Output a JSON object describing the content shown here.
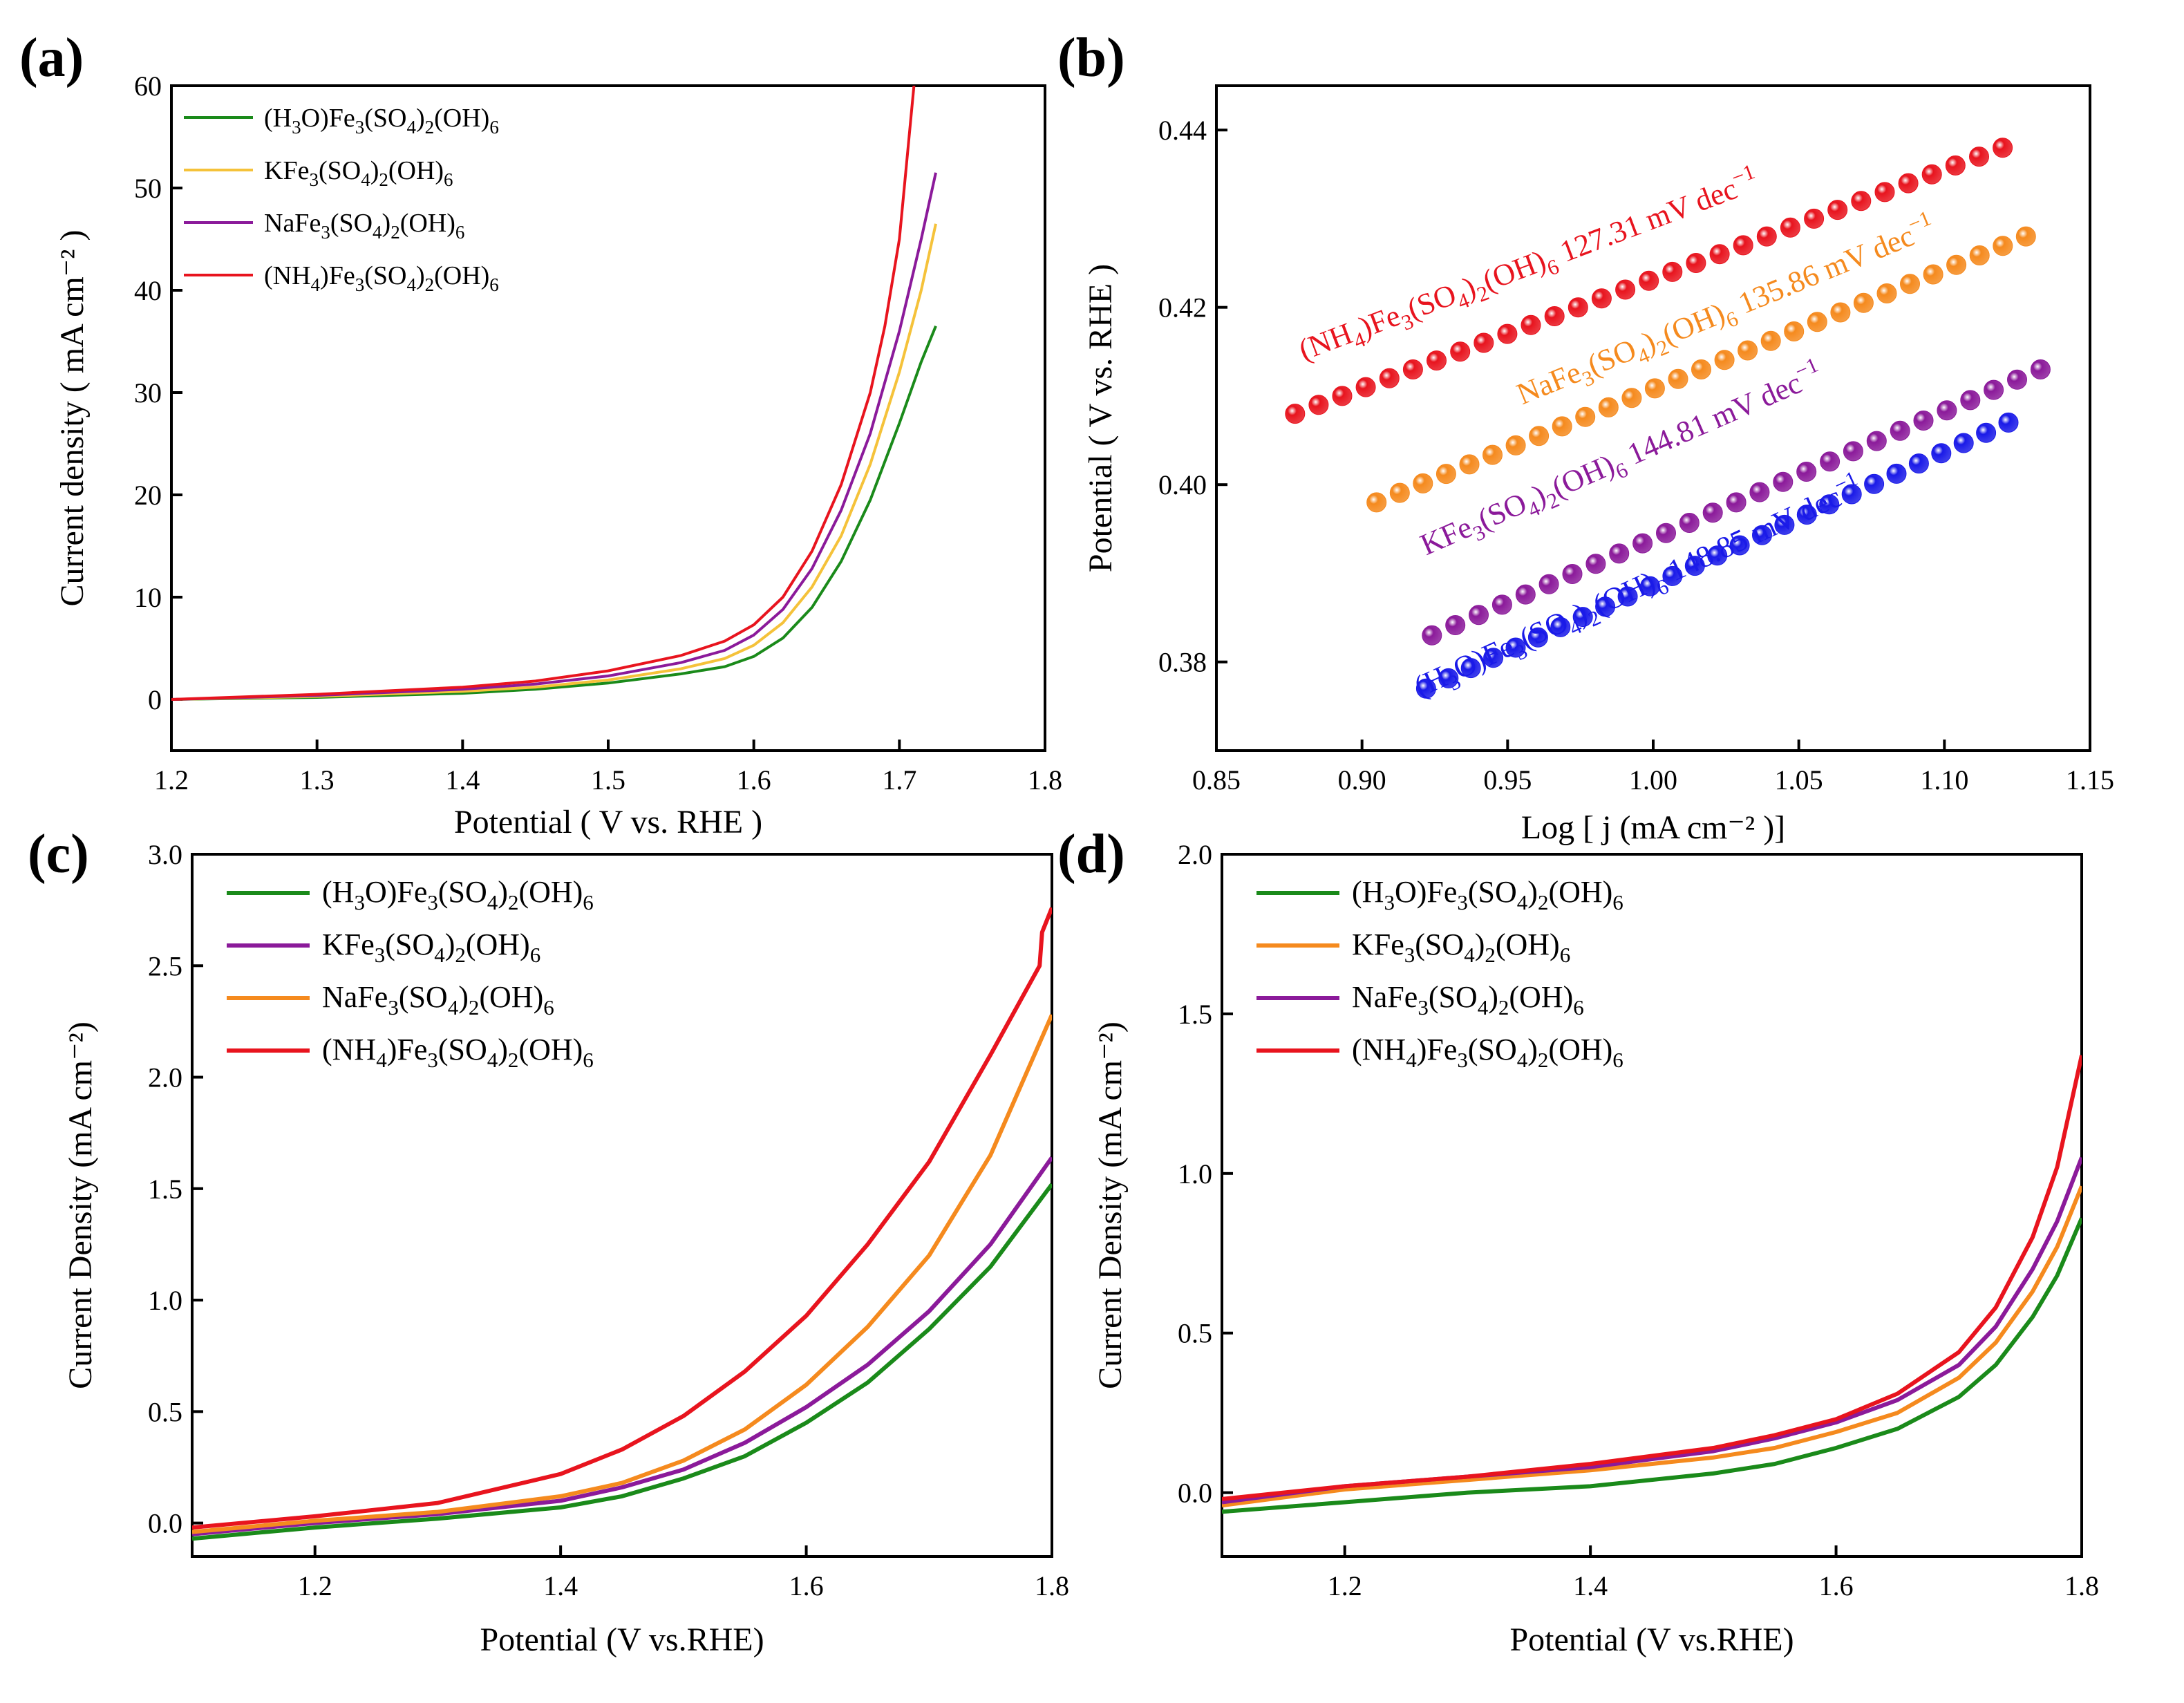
{
  "chart_data": [
    {
      "type": "line",
      "panel_label": "(a)",
      "xlabel": "Potential ( V vs. RHE )",
      "ylabel": "Current density ( mA cm⁻² )",
      "xlim": [
        1.2,
        1.8
      ],
      "ylim": [
        -5,
        60
      ],
      "xticks": [
        "1.2",
        "1.3",
        "1.4",
        "1.5",
        "1.6",
        "1.7",
        "1.8"
      ],
      "yticks": [
        "0",
        "10",
        "20",
        "30",
        "40",
        "50",
        "60"
      ],
      "legend_position": "top-left",
      "series": [
        {
          "name": "(H₃O)Fe₃(SO₄)₂(OH)₆",
          "color": "#1a8a1a",
          "x": [
            1.2,
            1.3,
            1.4,
            1.45,
            1.5,
            1.55,
            1.58,
            1.6,
            1.62,
            1.64,
            1.66,
            1.68,
            1.7,
            1.715,
            1.725
          ],
          "y": [
            0,
            0.2,
            0.6,
            1.0,
            1.6,
            2.5,
            3.2,
            4.2,
            6.0,
            9.0,
            13.5,
            19.5,
            27.0,
            33.0,
            36.5
          ]
        },
        {
          "name": "KFe₃(SO₄)₂(OH)₆",
          "color": "#f5c23a",
          "x": [
            1.2,
            1.3,
            1.4,
            1.45,
            1.5,
            1.55,
            1.58,
            1.6,
            1.62,
            1.64,
            1.66,
            1.68,
            1.7,
            1.715,
            1.725
          ],
          "y": [
            0,
            0.3,
            0.8,
            1.2,
            1.9,
            3.0,
            4.0,
            5.3,
            7.5,
            11.0,
            16.0,
            23.0,
            32.0,
            40.0,
            46.5
          ]
        },
        {
          "name": "NaFe₃(SO₄)₂(OH)₆",
          "color": "#8b1a9a",
          "x": [
            1.2,
            1.3,
            1.4,
            1.45,
            1.5,
            1.55,
            1.58,
            1.6,
            1.62,
            1.64,
            1.66,
            1.68,
            1.7,
            1.715,
            1.725
          ],
          "y": [
            0,
            0.4,
            1.0,
            1.5,
            2.3,
            3.6,
            4.8,
            6.3,
            8.8,
            12.8,
            18.5,
            26.0,
            36.0,
            45.0,
            51.5
          ]
        },
        {
          "name": "(NH₄)Fe₃(SO₄)₂(OH)₆",
          "color": "#e8141e",
          "x": [
            1.2,
            1.3,
            1.4,
            1.45,
            1.5,
            1.55,
            1.58,
            1.6,
            1.62,
            1.64,
            1.66,
            1.68,
            1.69,
            1.7,
            1.71
          ],
          "y": [
            0,
            0.5,
            1.2,
            1.8,
            2.8,
            4.3,
            5.7,
            7.3,
            10.0,
            14.5,
            21.0,
            30.0,
            36.5,
            45.0,
            60.0
          ]
        }
      ]
    },
    {
      "type": "scatter",
      "panel_label": "(b)",
      "xlabel": "Log [ j (mA cm⁻² )]",
      "ylabel": "Potential ( V vs. RHE )",
      "xlim": [
        0.85,
        1.15
      ],
      "ylim": [
        0.37,
        0.445
      ],
      "xticks": [
        "0.85",
        "0.90",
        "0.95",
        "1.00",
        "1.05",
        "1.10",
        "1.15"
      ],
      "yticks": [
        "0.38",
        "0.40",
        "0.42",
        "0.44"
      ],
      "series": [
        {
          "name": "(NH4)",
          "color": "#e8141e",
          "x_start": 0.877,
          "x_end": 1.12,
          "y_start": 0.408,
          "y_end": 0.438,
          "n": 31,
          "label_parts": [
            "(NH",
            "4",
            ")Fe",
            "3",
            "(SO",
            "4",
            ")",
            "2",
            "(OH)",
            "6",
            "  127.31 mV dec",
            "−1"
          ]
        },
        {
          "name": "Na",
          "color": "#f58a1e",
          "x_start": 0.905,
          "x_end": 1.128,
          "y_start": 0.398,
          "y_end": 0.428,
          "n": 29,
          "label_parts": [
            "NaFe",
            "3",
            "(SO",
            "4",
            ")",
            "2",
            "(OH)",
            "6",
            "  135.86 mV dec",
            "−1"
          ]
        },
        {
          "name": "K",
          "color": "#8b1a9a",
          "x_start": 0.924,
          "x_end": 1.133,
          "y_start": 0.383,
          "y_end": 0.413,
          "n": 27,
          "label_parts": [
            "KFe",
            "3",
            "(SO",
            "4",
            ")",
            "2",
            "(OH)",
            "6",
            "  144.81 mV dec",
            "−1"
          ]
        },
        {
          "name": "H3O",
          "color": "#1a1ae8",
          "x_start": 0.922,
          "x_end": 1.122,
          "y_start": 0.377,
          "y_end": 0.407,
          "n": 27,
          "label_parts": [
            "(H",
            "3",
            "O)Fe",
            "3",
            "(SO",
            "4",
            ")",
            "2",
            "(OH)",
            "6",
            "  148.85 mV dec",
            "−1"
          ]
        }
      ]
    },
    {
      "type": "line",
      "panel_label": "(c)",
      "xlabel": "Potential (V vs.RHE)",
      "ylabel": "Current Density (mA cm⁻²)",
      "xlim": [
        1.1,
        1.8
      ],
      "ylim": [
        -0.15,
        3.0
      ],
      "xticks": [
        "1.2",
        "1.4",
        "1.6",
        "1.8"
      ],
      "yticks": [
        "0.0",
        "0.5",
        "1.0",
        "1.5",
        "2.0",
        "2.5",
        "3.0"
      ],
      "legend_position": "top-left",
      "series": [
        {
          "name": "(H₃O)Fe₃(SO₄)₂(OH)₆",
          "color": "#1a8a1a",
          "x": [
            1.1,
            1.2,
            1.3,
            1.4,
            1.45,
            1.5,
            1.55,
            1.6,
            1.65,
            1.7,
            1.75,
            1.8
          ],
          "y": [
            -0.07,
            -0.02,
            0.02,
            0.07,
            0.12,
            0.2,
            0.3,
            0.45,
            0.63,
            0.87,
            1.15,
            1.52
          ]
        },
        {
          "name": "KFe₃(SO₄)₂(OH)₆",
          "color": "#8b1a9a",
          "x": [
            1.1,
            1.2,
            1.3,
            1.4,
            1.45,
            1.5,
            1.55,
            1.6,
            1.65,
            1.7,
            1.75,
            1.8
          ],
          "y": [
            -0.05,
            0.0,
            0.04,
            0.1,
            0.16,
            0.24,
            0.36,
            0.52,
            0.71,
            0.95,
            1.25,
            1.64
          ]
        },
        {
          "name": "NaFe₃(SO₄)₂(OH)₆",
          "color": "#f58a1e",
          "x": [
            1.1,
            1.2,
            1.3,
            1.4,
            1.45,
            1.5,
            1.55,
            1.6,
            1.65,
            1.7,
            1.75,
            1.8
          ],
          "y": [
            -0.04,
            0.01,
            0.05,
            0.12,
            0.18,
            0.28,
            0.42,
            0.62,
            0.88,
            1.2,
            1.65,
            2.28
          ]
        },
        {
          "name": "(NH₄)Fe₃(SO₄)₂(OH)₆",
          "color": "#e8141e",
          "x": [
            1.1,
            1.2,
            1.3,
            1.4,
            1.45,
            1.5,
            1.55,
            1.6,
            1.65,
            1.7,
            1.75,
            1.79,
            1.792,
            1.8
          ],
          "y": [
            -0.02,
            0.03,
            0.09,
            0.22,
            0.33,
            0.48,
            0.68,
            0.93,
            1.25,
            1.62,
            2.1,
            2.5,
            2.65,
            2.76
          ]
        }
      ]
    },
    {
      "type": "line",
      "panel_label": "(d)",
      "xlabel": "Potential (V vs.RHE)",
      "ylabel": "Current Density (mA cm⁻²)",
      "xlim": [
        1.1,
        1.8
      ],
      "ylim": [
        -0.2,
        2.0
      ],
      "xticks": [
        "1.2",
        "1.4",
        "1.6",
        "1.8"
      ],
      "yticks": [
        "0.0",
        "0.5",
        "1.0",
        "1.5",
        "2.0"
      ],
      "legend_position": "top-left",
      "series": [
        {
          "name": "(H₃O)Fe₃(SO₄)₂(OH)₆",
          "color": "#1a8a1a",
          "x": [
            1.1,
            1.2,
            1.3,
            1.4,
            1.5,
            1.55,
            1.6,
            1.65,
            1.7,
            1.73,
            1.76,
            1.78,
            1.8
          ],
          "y": [
            -0.06,
            -0.03,
            0.0,
            0.02,
            0.06,
            0.09,
            0.14,
            0.2,
            0.3,
            0.4,
            0.55,
            0.68,
            0.86
          ]
        },
        {
          "name": "KFe₃(SO₄)₂(OH)₆",
          "color": "#f58a1e",
          "x": [
            1.1,
            1.2,
            1.3,
            1.4,
            1.5,
            1.55,
            1.6,
            1.65,
            1.7,
            1.73,
            1.76,
            1.78,
            1.8
          ],
          "y": [
            -0.04,
            0.01,
            0.04,
            0.07,
            0.11,
            0.14,
            0.19,
            0.25,
            0.36,
            0.47,
            0.63,
            0.77,
            0.96
          ]
        },
        {
          "name": "NaFe₃(SO₄)₂(OH)₆",
          "color": "#8b1a9a",
          "x": [
            1.1,
            1.2,
            1.3,
            1.4,
            1.5,
            1.55,
            1.6,
            1.65,
            1.7,
            1.73,
            1.76,
            1.78,
            1.8
          ],
          "y": [
            -0.03,
            0.02,
            0.05,
            0.08,
            0.13,
            0.17,
            0.22,
            0.29,
            0.4,
            0.52,
            0.7,
            0.85,
            1.05
          ]
        },
        {
          "name": "(NH₄)Fe₃(SO₄)₂(OH)₆",
          "color": "#e8141e",
          "x": [
            1.1,
            1.2,
            1.3,
            1.4,
            1.5,
            1.55,
            1.6,
            1.65,
            1.7,
            1.73,
            1.76,
            1.78,
            1.8
          ],
          "y": [
            -0.02,
            0.02,
            0.05,
            0.09,
            0.14,
            0.18,
            0.23,
            0.31,
            0.44,
            0.58,
            0.8,
            1.02,
            1.37
          ]
        }
      ]
    }
  ]
}
